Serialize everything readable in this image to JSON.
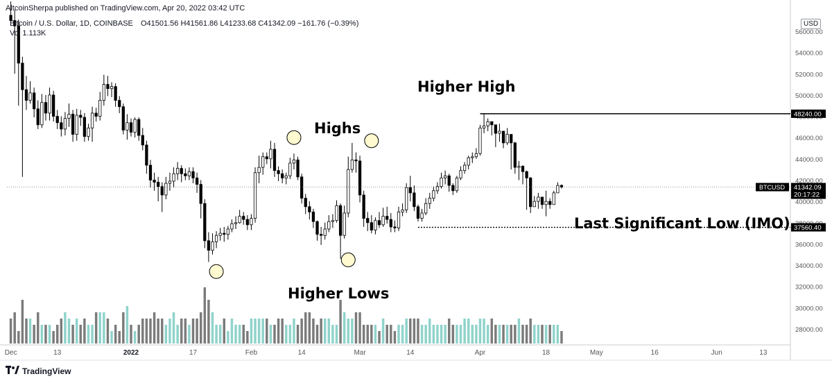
{
  "header": {
    "published": "AltcoinSherpa published on TradingView.com, Apr 20, 2022 03:42 UTC"
  },
  "info": {
    "symbol": "Bitcoin / U.S. Dollar, 1D, COINBASE",
    "open": "O41501.56",
    "high": "H41561.86",
    "low": "L41233.68",
    "close": "C41342.09",
    "change": "−161.76 (−0.39%)",
    "volume": "Vol 1.113K"
  },
  "currency_label": "USD",
  "footer": {
    "brand": "TradingView"
  },
  "colors": {
    "up": "#ffffff",
    "down": "#000000",
    "wick": "#000000",
    "vol_up": "#8fd3cb",
    "vol_down": "#7b7b7b",
    "axis_text": "#555555"
  },
  "chart_data": {
    "type": "candlestick",
    "y_ticks": [
      28000,
      30000,
      32000,
      34000,
      36000,
      38000,
      40000,
      42000,
      44000,
      46000,
      48000,
      50000,
      52000,
      54000,
      56000
    ],
    "y_tick_labels": [
      "28000.00",
      "30000.00",
      "32000.00",
      "34000.00",
      "36000.00",
      "38000.00",
      "40000.00",
      "42000.00",
      "44000.00",
      "46000.00",
      "48000.00",
      "50000.00",
      "52000.00",
      "54000.00",
      "56000.00"
    ],
    "ylim": [
      26500,
      57500
    ],
    "x_ticks": [
      {
        "label": "Dec",
        "day": 0
      },
      {
        "label": "13",
        "day": 12
      },
      {
        "label": "2022",
        "day": 31
      },
      {
        "label": "17",
        "day": 47
      },
      {
        "label": "Feb",
        "day": 62
      },
      {
        "label": "14",
        "day": 75
      },
      {
        "label": "Mar",
        "day": 90
      },
      {
        "label": "14",
        "day": 103
      },
      {
        "label": "Apr",
        "day": 121
      },
      {
        "label": "18",
        "day": 138
      },
      {
        "label": "May",
        "day": 151
      },
      {
        "label": "16",
        "day": 166
      },
      {
        "label": "Jun",
        "day": 182
      },
      {
        "label": "13",
        "day": 194
      }
    ],
    "x_range_days": [
      -1,
      201
    ],
    "ohlc_close": [
      57000,
      56500,
      53000,
      50500,
      49500,
      50200,
      48700,
      47200,
      49300,
      48300,
      50000,
      48000,
      47400,
      46800,
      47800,
      48200,
      46300,
      48100,
      47900,
      46100,
      46900,
      48300,
      48000,
      49500,
      51000,
      50600,
      50800,
      49500,
      48900,
      46700,
      47400,
      46500,
      47700,
      46200,
      45300,
      43400,
      42000,
      41800,
      41400,
      40600,
      41700,
      41900,
      42600,
      43100,
      42600,
      42400,
      42800,
      42200,
      41600,
      39800,
      36300,
      35400,
      36200,
      36800,
      37000,
      36900,
      37400,
      37900,
      38000,
      38600,
      38300,
      37800,
      38400,
      42700,
      43200,
      44200,
      44000,
      44900,
      42900,
      42600,
      42200,
      42400,
      43600,
      43900,
      42300,
      40300,
      39500,
      39000,
      38100,
      36900,
      36800,
      37400,
      38100,
      38200,
      39600,
      36800,
      38900,
      43000,
      43900,
      43800,
      40600,
      38400,
      38000,
      37300,
      38200,
      37800,
      38600,
      38300,
      37600,
      37500,
      39000,
      39200,
      41300,
      40800,
      39500,
      38400,
      38900,
      39800,
      40300,
      41000,
      41400,
      42200,
      42400,
      41500,
      41000,
      42200,
      42900,
      43400,
      44100,
      44200,
      44500,
      46900,
      47100,
      47500,
      47200,
      46400,
      46600,
      45500,
      46300,
      45500,
      43200,
      43300,
      42800,
      42200,
      39500,
      40000,
      40400,
      39700,
      40000,
      39700,
      40800,
      41500,
      41342
    ],
    "ohlc_open": [
      57500,
      57000,
      56500,
      53000,
      50500,
      49500,
      50200,
      48700,
      47200,
      49300,
      48300,
      50000,
      48000,
      47400,
      46800,
      47800,
      48200,
      46300,
      48100,
      47900,
      46100,
      46900,
      48300,
      48000,
      49500,
      51000,
      50600,
      50800,
      49500,
      48900,
      46700,
      47400,
      46500,
      47700,
      46200,
      45300,
      43400,
      42000,
      41800,
      41400,
      40600,
      41700,
      41900,
      42600,
      43100,
      42600,
      42400,
      42800,
      42200,
      41600,
      39800,
      36300,
      35400,
      36200,
      36800,
      37000,
      36900,
      37400,
      37900,
      38000,
      38600,
      38300,
      37800,
      38400,
      42700,
      43200,
      44200,
      44000,
      44900,
      42900,
      42600,
      42200,
      42400,
      43600,
      43900,
      42300,
      40300,
      39500,
      39000,
      38100,
      36900,
      36800,
      37400,
      38100,
      38200,
      39600,
      36800,
      38900,
      43000,
      43900,
      43800,
      40600,
      38400,
      38000,
      37300,
      38200,
      37800,
      38600,
      38300,
      37600,
      37500,
      39000,
      39200,
      41300,
      40800,
      39500,
      38400,
      38900,
      39800,
      40300,
      41000,
      41400,
      42200,
      42400,
      41500,
      41000,
      42200,
      42900,
      43400,
      44100,
      44200,
      44500,
      46900,
      47100,
      47500,
      47200,
      46400,
      46600,
      45500,
      46300,
      45500,
      43200,
      43300,
      42800,
      42200,
      39500,
      40000,
      40400,
      39700,
      40000,
      39700,
      40800,
      41500
    ],
    "ohlc_high": [
      58800,
      58000,
      57100,
      53600,
      51800,
      51300,
      50700,
      49500,
      50100,
      50000,
      50700,
      50400,
      48600,
      48000,
      48400,
      49200,
      48600,
      48700,
      48600,
      48300,
      47300,
      48900,
      48800,
      50300,
      51900,
      51800,
      51200,
      51100,
      49900,
      49200,
      48200,
      47800,
      47900,
      47900,
      46900,
      45700,
      43900,
      42700,
      42300,
      41800,
      42300,
      42700,
      43200,
      43700,
      43400,
      43100,
      43200,
      43200,
      42700,
      42000,
      40200,
      37100,
      37000,
      37200,
      37500,
      37600,
      37700,
      38300,
      38600,
      39200,
      39000,
      38700,
      38800,
      43200,
      44300,
      44600,
      44600,
      45700,
      45500,
      43300,
      43000,
      42700,
      44100,
      44500,
      44200,
      42600,
      40700,
      40000,
      39300,
      38200,
      37600,
      38000,
      38700,
      38800,
      40100,
      39800,
      39600,
      44200,
      45500,
      44600,
      44300,
      41000,
      39000,
      38700,
      38500,
      39000,
      39400,
      39500,
      38900,
      38200,
      39500,
      39800,
      41700,
      42400,
      41500,
      39700,
      39300,
      40300,
      40800,
      41400,
      41800,
      42700,
      42900,
      42600,
      41700,
      42400,
      43300,
      43700,
      44300,
      44600,
      45000,
      47200,
      48200,
      47800,
      47500,
      47100,
      47300,
      46300,
      46900,
      46300,
      45600,
      43800,
      43400,
      42900,
      42300,
      40500,
      40800,
      40400,
      41000,
      40300,
      41000,
      41800,
      41600
    ],
    "ohlc_low": [
      56500,
      52000,
      49000,
      42300,
      48600,
      49200,
      47900,
      46800,
      46900,
      47600,
      47600,
      47500,
      46800,
      46100,
      46200,
      47000,
      45600,
      45700,
      47100,
      45600,
      45700,
      45600,
      47500,
      47600,
      49000,
      49900,
      49800,
      48900,
      48300,
      46300,
      45800,
      46100,
      46000,
      45700,
      44800,
      42600,
      41300,
      41000,
      40000,
      39000,
      40200,
      41000,
      41300,
      42000,
      41800,
      42000,
      42000,
      41700,
      40800,
      38400,
      35600,
      34300,
      35000,
      35600,
      36300,
      36200,
      36400,
      37100,
      37400,
      37900,
      37800,
      37300,
      37300,
      38000,
      41700,
      42500,
      43500,
      43100,
      42300,
      41900,
      41700,
      41600,
      42100,
      43000,
      42000,
      39800,
      38800,
      38300,
      37500,
      36300,
      35900,
      36400,
      37100,
      37500,
      38000,
      34600,
      36500,
      38500,
      42700,
      42700,
      39900,
      37600,
      37200,
      37000,
      36900,
      37500,
      37600,
      37900,
      37100,
      37100,
      37200,
      38600,
      38900,
      40000,
      39100,
      38100,
      38100,
      38700,
      39300,
      40000,
      40700,
      41200,
      41600,
      40900,
      40600,
      40800,
      42000,
      42600,
      43000,
      43600,
      44000,
      44300,
      46400,
      46600,
      46200,
      45100,
      45600,
      45000,
      45300,
      43000,
      42600,
      42000,
      41600,
      39200,
      38900,
      39600,
      39300,
      39300,
      38600,
      39300,
      40400,
      40900,
      41200
    ],
    "volume": [
      30,
      31,
      28,
      33,
      30,
      30,
      29,
      31,
      29,
      29,
      29,
      28,
      29,
      30,
      31,
      30,
      29,
      30,
      29,
      30,
      29,
      29,
      31,
      31,
      31,
      30,
      28,
      29,
      28,
      31,
      32,
      29,
      28,
      29,
      30,
      30,
      30,
      31,
      30,
      30,
      29,
      30,
      31,
      29,
      30,
      30,
      29,
      30,
      30,
      31,
      35,
      33,
      31,
      29,
      29,
      30,
      28,
      30,
      29,
      29,
      29,
      28,
      30,
      30,
      30,
      30,
      30,
      29,
      29,
      30,
      30,
      29,
      29,
      30,
      29,
      30,
      31,
      31,
      30,
      29,
      30,
      30,
      30,
      29,
      29,
      33,
      31,
      30,
      30,
      31,
      31,
      29,
      29,
      29,
      29,
      28,
      30,
      29,
      29,
      28,
      29,
      29,
      30,
      30,
      30,
      30,
      29,
      29,
      30,
      29,
      29,
      29,
      29,
      30,
      29,
      29,
      29,
      30,
      30,
      29,
      29,
      30,
      30,
      29,
      30,
      29,
      29,
      29,
      29,
      29,
      29,
      30,
      29,
      29,
      30,
      29,
      29,
      29,
      29,
      29,
      29,
      29,
      28
    ],
    "price_levels": [
      {
        "label": "48240.00",
        "value": 48240,
        "style": "solid",
        "from_day": 121
      },
      {
        "label": "37560.40",
        "value": 37560,
        "style": "dotted",
        "from_day": 105
      }
    ],
    "last_price": {
      "symbol": "BTCUSD",
      "price": "41342.09",
      "countdown": "20:17:22",
      "value": 41342
    },
    "annotations": [
      {
        "text": "Higher High",
        "day": 126,
        "price": 50500
      },
      {
        "text": "Highs",
        "day": 73,
        "price": 46800
      },
      {
        "text": "Last Significant Low (IMO)",
        "day": 168,
        "price": 38400
      },
      {
        "text": "Higher Lows",
        "day": 69,
        "price": 32000
      }
    ],
    "circles": [
      {
        "day": 53,
        "price": 33400
      },
      {
        "day": 73,
        "price": 46000
      },
      {
        "day": 87,
        "price": 34500
      },
      {
        "day": 93,
        "price": 45700
      }
    ]
  }
}
